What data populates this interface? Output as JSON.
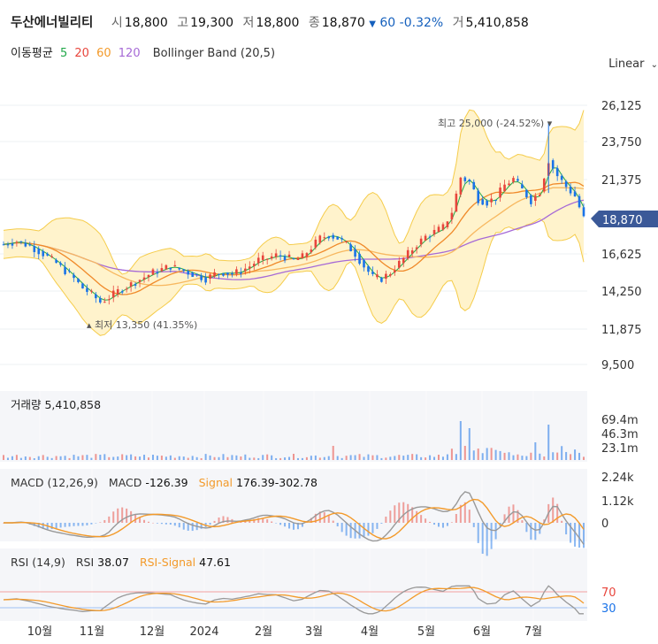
{
  "header": {
    "stock_name": "두산에너빌리티",
    "open_label": "시",
    "open_value": "18,800",
    "high_label": "고",
    "high_value": "19,300",
    "low_label": "저",
    "low_value": "18,800",
    "close_label": "종",
    "close_value": "18,870",
    "change_arrow": "▼",
    "change_value": "60",
    "change_pct": "-0.32%",
    "volume_label": "거",
    "volume_value": "5,410,858"
  },
  "ma_legend": {
    "label": "이동평균",
    "periods": [
      "5",
      "20",
      "60",
      "120"
    ],
    "colors": [
      "#22a84a",
      "#e8453c",
      "#f39a2a",
      "#a66ad6"
    ],
    "bollinger_label": "Bollinger Band (20,5)"
  },
  "scale_selector": {
    "label": "Linear",
    "icon": "chevron-down-icon"
  },
  "colors": {
    "up": "#e8453c",
    "down": "#1a73e8",
    "bollinger_fill": "#fff3cc",
    "bollinger_line": "#f5cc4a",
    "current_price_bg": "#3b5998",
    "macd_line": "#999999",
    "signal_line": "#f39a2a",
    "rsi_line": "#999999"
  },
  "chart_data": [
    {
      "type": "candlestick",
      "panel": "price",
      "y_ticks": [
        "26,125",
        "23,750",
        "21,375",
        "18,870",
        "16,625",
        "14,250",
        "11,875",
        "9,500"
      ],
      "ylim": [
        9500,
        26125
      ],
      "x_ticks": [
        "10월",
        "11월",
        "12월",
        "2024",
        "2월",
        "3월",
        "4월",
        "5월",
        "6월",
        "7월"
      ],
      "current_price": "18,870",
      "high_annotation": "최고 25,000 (-24.52%)",
      "low_annotation": "최저 13,350 (41.35%)",
      "price_series": [
        [
          0,
          17200
        ],
        [
          3,
          17400
        ],
        [
          6,
          17100
        ],
        [
          9,
          16600
        ],
        [
          12,
          16000
        ],
        [
          14,
          15500
        ],
        [
          16,
          15000
        ],
        [
          18,
          14400
        ],
        [
          20,
          14000
        ],
        [
          22,
          13500
        ],
        [
          24,
          13800
        ],
        [
          26,
          14200
        ],
        [
          28,
          14500
        ],
        [
          30,
          14800
        ],
        [
          32,
          15100
        ],
        [
          34,
          15400
        ],
        [
          36,
          15600
        ],
        [
          38,
          15800
        ],
        [
          40,
          15600
        ],
        [
          42,
          15400
        ],
        [
          44,
          15200
        ],
        [
          46,
          15000
        ],
        [
          48,
          15300
        ],
        [
          50,
          15400
        ],
        [
          52,
          15300
        ],
        [
          54,
          15500
        ],
        [
          56,
          15800
        ],
        [
          58,
          16200
        ],
        [
          60,
          16300
        ],
        [
          62,
          16500
        ],
        [
          64,
          16400
        ],
        [
          66,
          16200
        ],
        [
          68,
          16400
        ],
        [
          70,
          17000
        ],
        [
          72,
          17600
        ],
        [
          74,
          17800
        ],
        [
          76,
          17600
        ],
        [
          78,
          17200
        ],
        [
          80,
          16600
        ],
        [
          82,
          15800
        ],
        [
          84,
          15100
        ],
        [
          86,
          15000
        ],
        [
          88,
          15400
        ],
        [
          90,
          16000
        ],
        [
          92,
          16600
        ],
        [
          94,
          17200
        ],
        [
          96,
          17700
        ],
        [
          98,
          18000
        ],
        [
          100,
          18300
        ],
        [
          102,
          19300
        ],
        [
          104,
          21500
        ],
        [
          106,
          21200
        ],
        [
          108,
          20100
        ],
        [
          110,
          19900
        ],
        [
          112,
          20200
        ],
        [
          114,
          21000
        ],
        [
          116,
          21400
        ],
        [
          118,
          20700
        ],
        [
          120,
          20000
        ],
        [
          122,
          20600
        ],
        [
          124,
          22600
        ],
        [
          126,
          21600
        ],
        [
          128,
          20900
        ],
        [
          130,
          20300
        ],
        [
          132,
          18870
        ]
      ]
    },
    {
      "type": "bar",
      "panel": "volume",
      "title": "거래량 5,410,858",
      "y_ticks": [
        "69.4m",
        "46.3m",
        "23.1m"
      ]
    },
    {
      "type": "line",
      "panel": "macd",
      "title": "MACD (12,26,9)",
      "legend": [
        {
          "name": "MACD",
          "value": "-126.39"
        },
        {
          "name": "Signal",
          "value": "176.39"
        },
        {
          "name": "",
          "value": "-302.78"
        }
      ],
      "y_ticks": [
        "2.24k",
        "1.12k",
        "0"
      ]
    },
    {
      "type": "line",
      "panel": "rsi",
      "title": "RSI (14,9)",
      "legend": [
        {
          "name": "RSI",
          "value": "38.07"
        },
        {
          "name": "RSI-Signal",
          "value": "47.61"
        }
      ],
      "y_ticks": [
        "70",
        "30"
      ]
    }
  ]
}
